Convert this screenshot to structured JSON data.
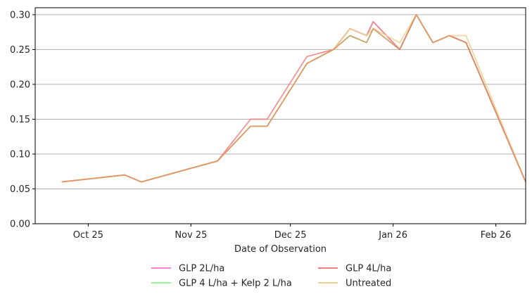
{
  "chart_data": {
    "type": "line",
    "title": "",
    "xlabel": "Date of Observation",
    "ylabel": "",
    "x_ticks": [
      {
        "date": "2025-10-25",
        "label": "Oct 25"
      },
      {
        "date": "2025-11-25",
        "label": "Nov 25"
      },
      {
        "date": "2025-12-25",
        "label": "Dec 25"
      },
      {
        "date": "2026-01-25",
        "label": "Jan 26"
      },
      {
        "date": "2026-02-25",
        "label": "Feb 26"
      }
    ],
    "y_ticks": [
      {
        "value": 0.0,
        "label": "0.00"
      },
      {
        "value": 0.05,
        "label": "0.05"
      },
      {
        "value": 0.1,
        "label": "0.10"
      },
      {
        "value": 0.15,
        "label": "0.15"
      },
      {
        "value": 0.2,
        "label": "0.20"
      },
      {
        "value": 0.25,
        "label": "0.25"
      },
      {
        "value": 0.3,
        "label": "0.30"
      }
    ],
    "xlim": [
      "2025-10-09",
      "2026-03-06"
    ],
    "ylim": [
      0,
      0.31
    ],
    "grid": "horizontal",
    "legend_position": "bottom",
    "series": [
      {
        "name": "GLP 2L/ha",
        "color": "#ff7fd0",
        "points": [
          [
            "2025-10-17",
            0.06
          ],
          [
            "2025-11-05",
            0.07
          ],
          [
            "2025-11-10",
            0.06
          ],
          [
            "2025-12-03",
            0.09
          ],
          [
            "2025-12-13",
            0.14
          ],
          [
            "2025-12-18",
            0.14
          ],
          [
            "2025-12-30",
            0.23
          ],
          [
            "2026-01-07",
            0.25
          ],
          [
            "2026-01-12",
            0.28
          ],
          [
            "2026-01-17",
            0.27
          ],
          [
            "2026-01-19",
            0.29
          ],
          [
            "2026-01-27",
            0.25
          ],
          [
            "2026-02-01",
            0.3
          ],
          [
            "2026-02-06",
            0.26
          ],
          [
            "2026-02-11",
            0.27
          ],
          [
            "2026-02-16",
            0.26
          ],
          [
            "2026-03-06",
            0.06
          ]
        ]
      },
      {
        "name": "GLP 4 L/ha + Kelp 2 L/ha",
        "color": "#99f09a",
        "points": [
          [
            "2025-10-17",
            0.06
          ],
          [
            "2025-11-05",
            0.07
          ],
          [
            "2025-11-10",
            0.06
          ],
          [
            "2025-12-03",
            0.09
          ],
          [
            "2025-12-13",
            0.14
          ],
          [
            "2025-12-18",
            0.14
          ],
          [
            "2025-12-30",
            0.23
          ],
          [
            "2026-01-07",
            0.25
          ],
          [
            "2026-01-12",
            0.27
          ],
          [
            "2026-01-17",
            0.26
          ],
          [
            "2026-01-19",
            0.28
          ],
          [
            "2026-01-27",
            0.25
          ],
          [
            "2026-02-01",
            0.3
          ],
          [
            "2026-02-06",
            0.26
          ],
          [
            "2026-02-11",
            0.27
          ],
          [
            "2026-02-16",
            0.26
          ],
          [
            "2026-03-06",
            0.06
          ]
        ]
      },
      {
        "name": "GLP 4L/ha",
        "color": "#f08080",
        "points": [
          [
            "2025-10-17",
            0.06
          ],
          [
            "2025-11-05",
            0.07
          ],
          [
            "2025-11-10",
            0.06
          ],
          [
            "2025-12-03",
            0.09
          ],
          [
            "2025-12-13",
            0.15
          ],
          [
            "2025-12-18",
            0.15
          ],
          [
            "2025-12-30",
            0.24
          ],
          [
            "2026-01-07",
            0.25
          ],
          [
            "2026-01-12",
            0.28
          ],
          [
            "2026-01-17",
            0.27
          ],
          [
            "2026-01-19",
            0.29
          ],
          [
            "2026-01-27",
            0.25
          ],
          [
            "2026-02-01",
            0.3
          ],
          [
            "2026-02-06",
            0.26
          ],
          [
            "2026-02-11",
            0.27
          ],
          [
            "2026-02-16",
            0.26
          ],
          [
            "2026-03-06",
            0.06
          ]
        ]
      },
      {
        "name": "Untreated",
        "color": "#f0d090",
        "points": [
          [
            "2025-10-17",
            0.06
          ],
          [
            "2025-11-05",
            0.07
          ],
          [
            "2025-11-10",
            0.06
          ],
          [
            "2025-12-03",
            0.09
          ],
          [
            "2025-12-13",
            0.14
          ],
          [
            "2025-12-18",
            0.14
          ],
          [
            "2025-12-30",
            0.23
          ],
          [
            "2026-01-07",
            0.25
          ],
          [
            "2026-01-12",
            0.28
          ],
          [
            "2026-01-17",
            0.27
          ],
          [
            "2026-01-19",
            0.28
          ],
          [
            "2026-01-27",
            0.26
          ],
          [
            "2026-02-01",
            0.3
          ],
          [
            "2026-02-06",
            0.26
          ],
          [
            "2026-02-11",
            0.27
          ],
          [
            "2026-02-16",
            0.27
          ],
          [
            "2026-03-06",
            0.06
          ]
        ]
      }
    ],
    "overlap_color": "#d9895a",
    "legend": [
      {
        "label": "GLP 2L/ha",
        "color": "#ff7fd0"
      },
      {
        "label": "GLP 4L/ha",
        "color": "#f08080"
      },
      {
        "label": "GLP 4 L/ha + Kelp 2 L/ha",
        "color": "#99f09a"
      },
      {
        "label": "Untreated",
        "color": "#f0d090"
      }
    ]
  }
}
